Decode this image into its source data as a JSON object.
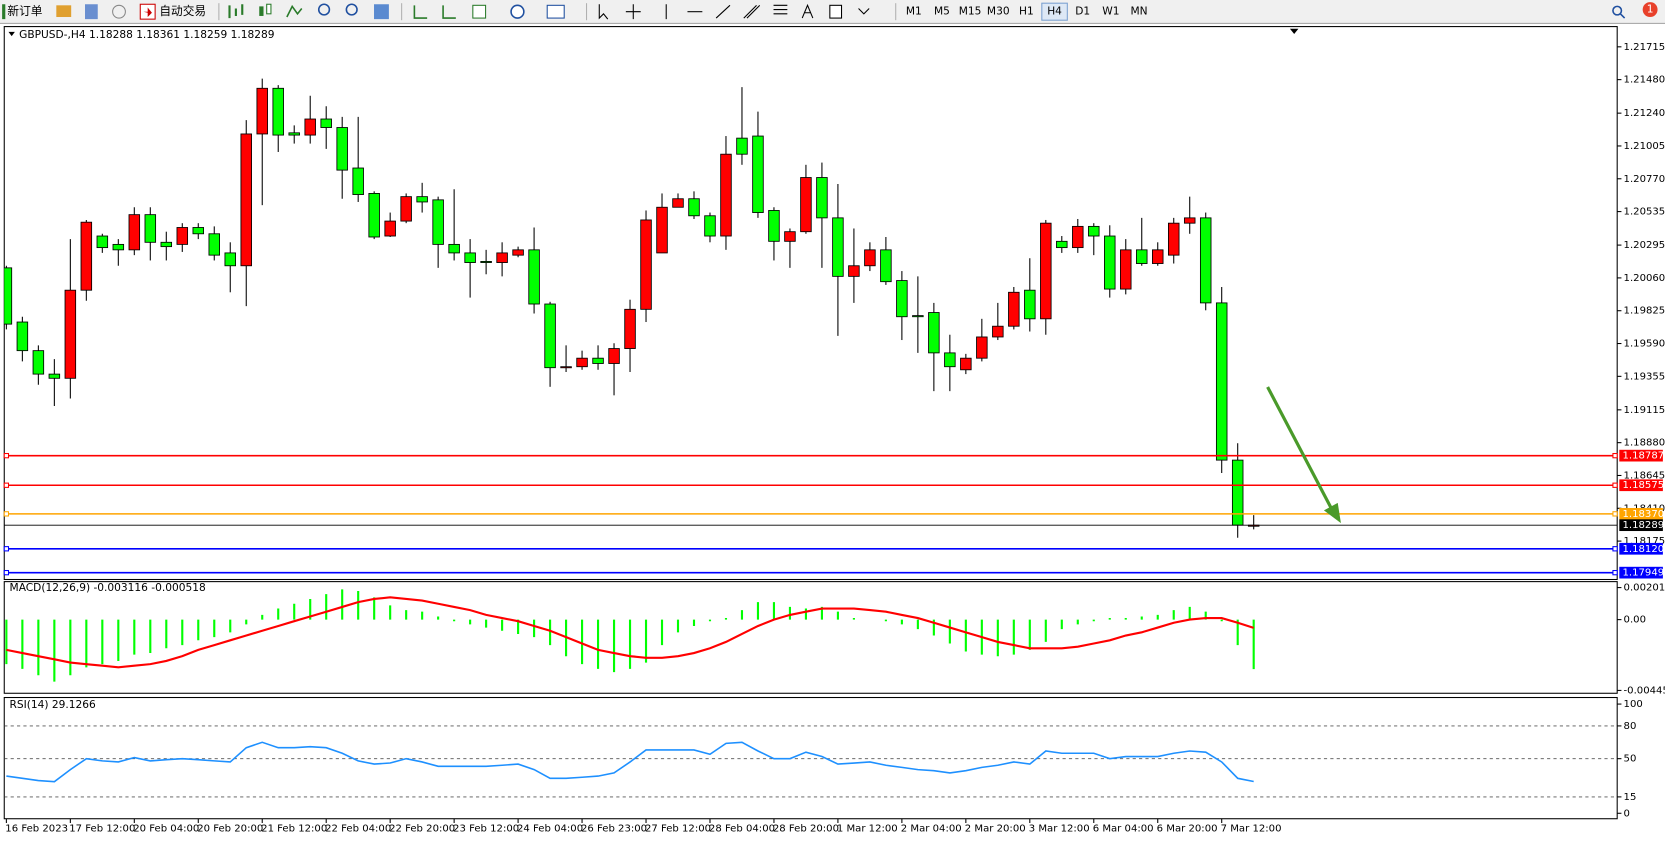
{
  "toolbar": {
    "new_order": "新订单",
    "auto_trading": "自动交易",
    "timeframes": [
      "M1",
      "M5",
      "M15",
      "M30",
      "H1",
      "H4",
      "D1",
      "W1",
      "MN"
    ],
    "active_timeframe": 5,
    "notifications": "1"
  },
  "chart_data": [
    {
      "type": "candlestick",
      "title": "GBPUSD-,H4  1.18288 1.18361 1.18259 1.18289",
      "x": [
        "16 Feb 2023",
        null,
        null,
        null,
        "17 Feb 12:00",
        null,
        null,
        null,
        "20 Feb 04:00",
        null,
        null,
        null,
        "20 Feb 20:00",
        null,
        null,
        null,
        "21 Feb 12:00",
        null,
        null,
        null,
        "22 Feb 04:00",
        null,
        null,
        null,
        "22 Feb 20:00",
        null,
        null,
        null,
        "23 Feb 12:00",
        null,
        null,
        null,
        "24 Feb 04:00",
        null,
        null,
        null,
        "26 Feb 23:00",
        null,
        null,
        null,
        "27 Feb 12:00",
        null,
        null,
        null,
        "28 Feb 04:00",
        null,
        null,
        null,
        "28 Feb 20:00",
        null,
        null,
        null,
        "1 Mar 12:00",
        null,
        null,
        null,
        "2 Mar 04:00",
        null,
        null,
        null,
        "2 Mar 20:00",
        null,
        null,
        null,
        "3 Mar 12:00",
        null,
        null,
        null,
        "6 Mar 04:00",
        null,
        null,
        null,
        "6 Mar 20:00",
        null,
        null,
        null,
        "7 Mar 12:00",
        null,
        null
      ],
      "open": [
        1.20132,
        1.19744,
        1.19539,
        1.19371,
        1.19341,
        1.19972,
        1.2036,
        1.203,
        1.20261,
        1.20513,
        1.20315,
        1.203,
        1.20421,
        1.20376,
        1.20239,
        1.20147,
        1.21091,
        1.21418,
        1.21099,
        1.21083,
        1.21198,
        1.21137,
        1.20847,
        1.20665,
        1.2036,
        1.20467,
        1.20642,
        1.20619,
        1.203,
        1.20239,
        1.20178,
        1.2017,
        1.20223,
        1.20261,
        1.19873,
        1.19417,
        1.19424,
        1.19485,
        1.19447,
        1.19554,
        1.19835,
        1.20239,
        1.20566,
        1.20627,
        1.20505,
        1.2036,
        1.21061,
        1.21076,
        1.20543,
        1.20322,
        1.20391,
        1.20779,
        1.2049,
        1.20071,
        1.20147,
        1.20261,
        1.20041,
        1.1979,
        1.19812,
        1.19523,
        1.19402,
        1.19485,
        1.19637,
        1.19714,
        1.19972,
        1.19767,
        1.20322,
        1.20277,
        1.20429,
        1.2036,
        1.1998,
        1.20261,
        1.20163,
        1.20223,
        1.20452,
        1.2049,
        1.19881,
        1.18755,
        1.18288
      ],
      "high": [
        1.20147,
        1.19782,
        1.19577,
        1.19478,
        1.20338,
        1.20475,
        1.20376,
        1.20338,
        1.20566,
        1.20566,
        1.20391,
        1.20452,
        1.20452,
        1.20429,
        1.20315,
        1.2119,
        1.21487,
        1.21441,
        1.21152,
        1.21365,
        1.21289,
        1.21213,
        1.21213,
        1.2068,
        1.20528,
        1.20665,
        1.20741,
        1.20642,
        1.20695,
        1.20338,
        1.20261,
        1.20315,
        1.20284,
        1.20421,
        1.19889,
        1.19577,
        1.19539,
        1.19577,
        1.19592,
        1.19904,
        1.20543,
        1.20665,
        1.20665,
        1.2068,
        1.20528,
        1.21076,
        1.21426,
        1.21251,
        1.20566,
        1.20414,
        1.2087,
        1.20886,
        1.20733,
        1.20414,
        1.20315,
        1.20353,
        1.20109,
        1.20071,
        1.19881,
        1.19653,
        1.19516,
        1.19767,
        1.19881,
        1.19995,
        1.20201,
        1.20475,
        1.2036,
        1.20482,
        1.20452,
        1.20437,
        1.20338,
        1.2049,
        1.20315,
        1.2049,
        1.20642,
        1.20528,
        1.19995,
        1.18876,
        1.18361
      ],
      "low": [
        1.19691,
        1.19462,
        1.19295,
        1.19143,
        1.19196,
        1.19896,
        1.20239,
        1.20147,
        1.20223,
        1.20185,
        1.20185,
        1.20246,
        1.20338,
        1.20185,
        1.19957,
        1.19858,
        1.20581,
        1.20962,
        1.21022,
        1.21022,
        1.20984,
        1.20627,
        1.20604,
        1.20338,
        1.20353,
        1.20452,
        1.20528,
        1.20132,
        1.20185,
        1.19919,
        1.20086,
        1.20071,
        1.20208,
        1.19805,
        1.1928,
        1.19386,
        1.19402,
        1.19402,
        1.19219,
        1.19386,
        1.19744,
        1.20239,
        1.20566,
        1.20482,
        1.20315,
        1.20261,
        1.2087,
        1.2049,
        1.20185,
        1.20132,
        1.20376,
        1.20132,
        1.19645,
        1.19881,
        1.20109,
        1.2001,
        1.19615,
        1.19523,
        1.19249,
        1.19249,
        1.19371,
        1.19462,
        1.19615,
        1.19691,
        1.19676,
        1.19653,
        1.20239,
        1.20239,
        1.20223,
        1.19919,
        1.19942,
        1.20147,
        1.20147,
        1.20163,
        1.20376,
        1.19828,
        1.18663,
        1.18199,
        1.18259
      ],
      "close": [
        1.19729,
        1.19539,
        1.19371,
        1.19341,
        1.19972,
        1.20459,
        1.20277,
        1.20261,
        1.20513,
        1.20315,
        1.20284,
        1.20421,
        1.20376,
        1.20223,
        1.20147,
        1.21091,
        1.21418,
        1.21083,
        1.21083,
        1.21198,
        1.21137,
        1.20832,
        1.20657,
        1.20353,
        1.20467,
        1.20642,
        1.20604,
        1.203,
        1.20239,
        1.2017,
        1.2017,
        1.20239,
        1.20261,
        1.19873,
        1.19417,
        1.19424,
        1.19485,
        1.19447,
        1.19554,
        1.19835,
        1.20475,
        1.20566,
        1.20627,
        1.20505,
        1.2036,
        1.20946,
        1.20946,
        1.20528,
        1.20322,
        1.20391,
        1.20779,
        1.2049,
        1.20071,
        1.20147,
        1.20261,
        1.20033,
        1.19782,
        1.19782,
        1.19523,
        1.19424,
        1.19485,
        1.19637,
        1.19714,
        1.19957,
        1.19767,
        1.20452,
        1.20277,
        1.20429,
        1.2036,
        1.1998,
        1.20261,
        1.20163,
        1.20261,
        1.20452,
        1.2049,
        1.19881,
        1.18755,
        1.18289,
        1.18289
      ],
      "up_color": "#ff0000",
      "down_color": "#00ff00",
      "ylim": [
        1.179,
        1.2186
      ],
      "yticks": [
        1.21715,
        {
          "value": 1.2148,
          "label": "1.21480"
        },
        {
          "value": 1.2124,
          "label": "1.21240"
        },
        1.21005,
        {
          "value": 1.2077,
          "label": "1.20770"
        },
        1.20535,
        1.20295,
        {
          "value": 1.2006,
          "label": "1.20060"
        },
        1.19825,
        {
          "value": 1.1959,
          "label": "1.19590"
        },
        1.19355,
        1.19115,
        {
          "value": 1.1888,
          "label": "1.18880"
        },
        1.18645,
        {
          "value": 1.1841,
          "label": "1.18410"
        },
        1.18175
      ],
      "lines": [
        {
          "value": 1.18787,
          "color": "#ff0000"
        },
        {
          "value": 1.18575,
          "color": "#ff0000"
        },
        {
          "value": 1.1837,
          "label": "1.18370",
          "color": "#ffa500"
        },
        {
          "value": 1.18289,
          "color": "#000000"
        },
        {
          "value": 1.1812,
          "label": "1.18120",
          "color": "#0000ff"
        },
        {
          "value": 1.17949,
          "color": "#0000ff"
        }
      ]
    },
    {
      "type": "macd",
      "title": "MACD(12,26,9) -0.003116 -0.000518",
      "histogram": [
        -0.0028,
        -0.0031,
        -0.0035,
        -0.0039,
        -0.0035,
        -0.003,
        -0.0028,
        -0.0026,
        -0.0022,
        -0.0021,
        -0.0018,
        -0.0016,
        -0.0013,
        -0.0011,
        -0.0008,
        -0.0003,
        0.0003,
        0.0007,
        0.001,
        0.0013,
        0.0016,
        0.0019,
        0.0018,
        0.0014,
        0.0009,
        0.0006,
        0.0005,
        0.0002,
        -0.0001,
        -0.0003,
        -0.0005,
        -0.0007,
        -0.0009,
        -0.0011,
        -0.0016,
        -0.0023,
        -0.0028,
        -0.0031,
        -0.0033,
        -0.0031,
        -0.0027,
        -0.0016,
        -0.0008,
        -0.0004,
        -0.0001,
        0.0001,
        0.0006,
        0.0011,
        0.0011,
        0.0008,
        0.0007,
        0.0008,
        0.0005,
        0.0001,
        0,
        -0.0001,
        -0.0003,
        -0.0006,
        -0.001,
        -0.0015,
        -0.002,
        -0.0022,
        -0.0023,
        -0.0022,
        -0.0019,
        -0.0014,
        -0.0006,
        -0.0003,
        -0.0001,
        0.0001,
        0.0001,
        0.0002,
        0.0003,
        0.0006,
        0.0008,
        0.0005,
        -0.0001,
        -0.0016,
        -0.003116
      ],
      "histogram_color": "#00ff00",
      "signal": [
        -0.0019,
        -0.0021,
        -0.0023,
        -0.0025,
        -0.0027,
        -0.0028,
        -0.0029,
        -0.003,
        -0.0029,
        -0.0028,
        -0.0026,
        -0.0023,
        -0.0019,
        -0.0016,
        -0.0013,
        -0.001,
        -0.0007,
        -0.0004,
        -0.0001,
        0.0002,
        0.0005,
        0.0008,
        0.0011,
        0.0013,
        0.0014,
        0.0013,
        0.0012,
        0.001,
        0.0008,
        0.0006,
        0.0003,
        0.0001,
        -0.0001,
        -0.0004,
        -0.0007,
        -0.0011,
        -0.0015,
        -0.0019,
        -0.0021,
        -0.0023,
        -0.0024,
        -0.0024,
        -0.0023,
        -0.0021,
        -0.0018,
        -0.0014,
        -0.0009,
        -0.0004,
        0,
        0.0003,
        0.0005,
        0.0007,
        0.0007,
        0.0007,
        0.0006,
        0.0005,
        0.0003,
        0.0001,
        -0.0002,
        -0.0005,
        -0.0008,
        -0.0011,
        -0.0014,
        -0.0016,
        -0.0018,
        -0.0018,
        -0.0018,
        -0.0017,
        -0.0015,
        -0.0013,
        -0.001,
        -0.0008,
        -0.0005,
        -0.0002,
        0,
        0.0001,
        0.0001,
        -0.0002,
        -0.000518
      ],
      "signal_color": "#ff0000",
      "ylim": [
        -0.00463,
        0.00239
      ],
      "yticks": [
        0.002015,
        {
          "value": 0,
          "label": "0.00"
        },
        -0.004451
      ]
    },
    {
      "type": "line",
      "title": "RSI(14) 29.1266",
      "values": [
        34,
        32,
        30,
        29,
        40,
        50,
        48,
        47,
        51,
        48,
        49,
        50,
        49,
        48,
        47,
        60,
        65,
        60,
        60,
        61,
        60,
        55,
        48,
        45,
        46,
        50,
        47,
        43,
        43,
        43,
        43,
        44,
        45,
        40,
        32,
        32,
        33,
        34,
        37,
        47,
        58,
        58,
        58,
        58,
        54,
        64,
        65,
        57,
        50,
        50,
        56,
        52,
        45,
        46,
        47,
        44,
        42,
        40,
        39,
        37,
        39,
        42,
        44,
        47,
        45,
        57,
        55,
        55,
        55,
        50,
        52,
        52,
        52,
        55,
        57,
        56,
        47,
        32,
        29.1266
      ],
      "color": "#1e90ff",
      "ylim": [
        -5,
        106
      ],
      "yticks": [
        0,
        15,
        50,
        80,
        100
      ],
      "levels": [
        15,
        50,
        80
      ]
    }
  ]
}
